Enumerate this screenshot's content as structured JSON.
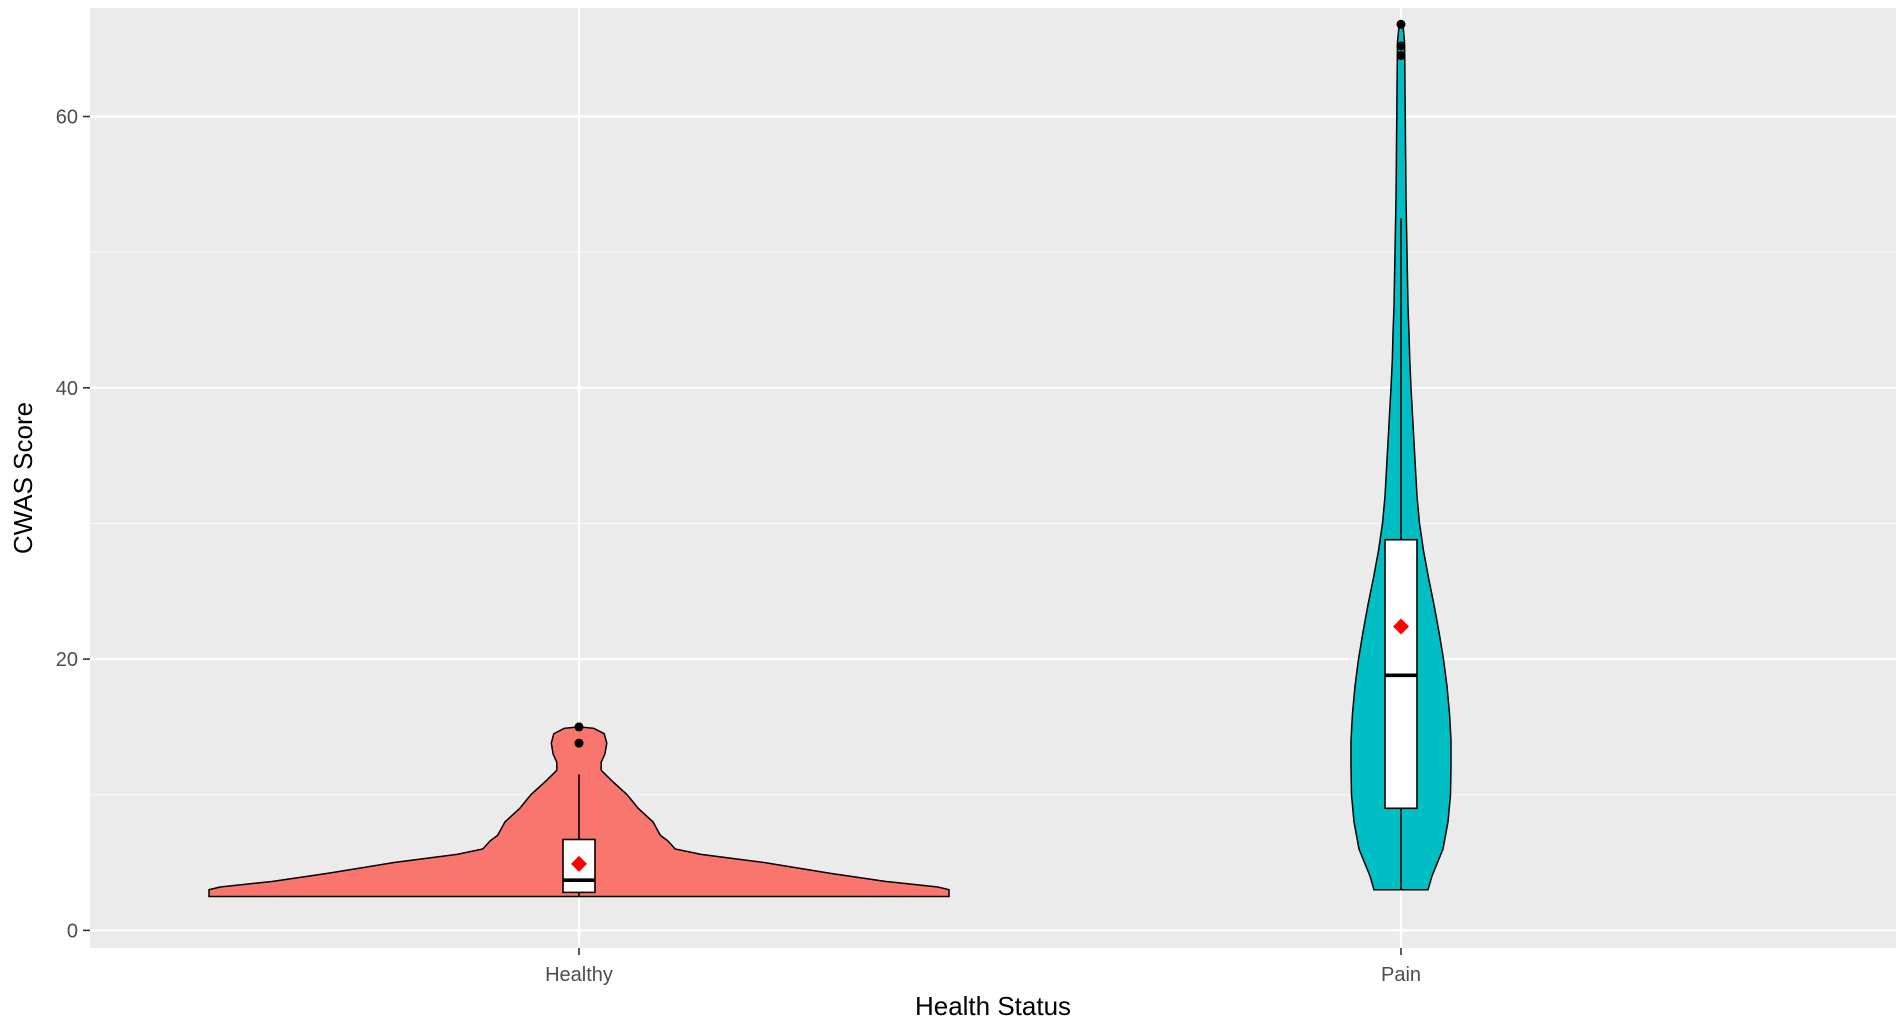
{
  "chart_data": {
    "type": "violin",
    "title": "",
    "xlabel": "Health Status",
    "ylabel": "CWAS Score",
    "categories": [
      "Healthy",
      "Pain"
    ],
    "ylim": [
      -1.3,
      68
    ],
    "y_ticks": [
      0,
      20,
      40,
      60
    ],
    "grid": true,
    "legend": "none",
    "colors": {
      "panel_background": "#EBEBEB",
      "grid_major": "#FFFFFF",
      "Healthy": "#F8766D",
      "Pain": "#00BFC4",
      "mean_marker": "#FF0000",
      "box_fill": "#FFFFFF",
      "outline": "#000000"
    },
    "series": [
      {
        "category": "Healthy",
        "box": {
          "q1": 2.8,
          "median": 3.7,
          "q3": 6.7,
          "whisker_low": 2.5,
          "whisker_high": 11.5
        },
        "mean": 4.9,
        "outliers": [
          15,
          13.8
        ],
        "density_profile": [
          [
            2.5,
            1.0
          ],
          [
            3.0,
            1.0
          ],
          [
            3.2,
            0.97
          ],
          [
            3.6,
            0.83
          ],
          [
            4.2,
            0.68
          ],
          [
            5.0,
            0.5
          ],
          [
            5.6,
            0.33
          ],
          [
            6.0,
            0.26
          ],
          [
            6.6,
            0.24
          ],
          [
            7.0,
            0.22
          ],
          [
            8.0,
            0.2
          ],
          [
            9.0,
            0.16
          ],
          [
            10.0,
            0.13
          ],
          [
            11.0,
            0.09
          ],
          [
            11.8,
            0.06
          ],
          [
            12.4,
            0.06
          ],
          [
            13.0,
            0.07
          ],
          [
            13.8,
            0.075
          ],
          [
            14.5,
            0.068
          ],
          [
            14.9,
            0.04
          ],
          [
            15.0,
            0.0
          ]
        ]
      },
      {
        "category": "Pain",
        "box": {
          "q1": 9.0,
          "median": 18.8,
          "q3": 28.8,
          "whisker_low": 3.0,
          "whisker_high": 52.5
        },
        "mean": 22.4,
        "outliers": [
          66.8,
          65.2,
          64.5
        ],
        "density_profile": [
          [
            3.0,
            0.54
          ],
          [
            4.0,
            0.62
          ],
          [
            6.0,
            0.84
          ],
          [
            8.0,
            0.94
          ],
          [
            10.0,
            0.99
          ],
          [
            12.0,
            1.0
          ],
          [
            14.0,
            1.0
          ],
          [
            16.0,
            0.97
          ],
          [
            18.0,
            0.92
          ],
          [
            20.0,
            0.85
          ],
          [
            22.0,
            0.76
          ],
          [
            24.0,
            0.66
          ],
          [
            26.0,
            0.55
          ],
          [
            28.0,
            0.45
          ],
          [
            30.0,
            0.37
          ],
          [
            32.0,
            0.32
          ],
          [
            34.0,
            0.29
          ],
          [
            36.0,
            0.26
          ],
          [
            38.0,
            0.23
          ],
          [
            40.0,
            0.2
          ],
          [
            42.0,
            0.175
          ],
          [
            44.0,
            0.16
          ],
          [
            46.0,
            0.14
          ],
          [
            48.0,
            0.13
          ],
          [
            50.0,
            0.12
          ],
          [
            52.0,
            0.11
          ],
          [
            54.0,
            0.1
          ],
          [
            56.0,
            0.095
          ],
          [
            58.0,
            0.09
          ],
          [
            60.0,
            0.085
          ],
          [
            62.0,
            0.08
          ],
          [
            64.0,
            0.075
          ],
          [
            65.5,
            0.07
          ],
          [
            66.5,
            0.045
          ],
          [
            67.0,
            0.0
          ]
        ]
      }
    ]
  }
}
